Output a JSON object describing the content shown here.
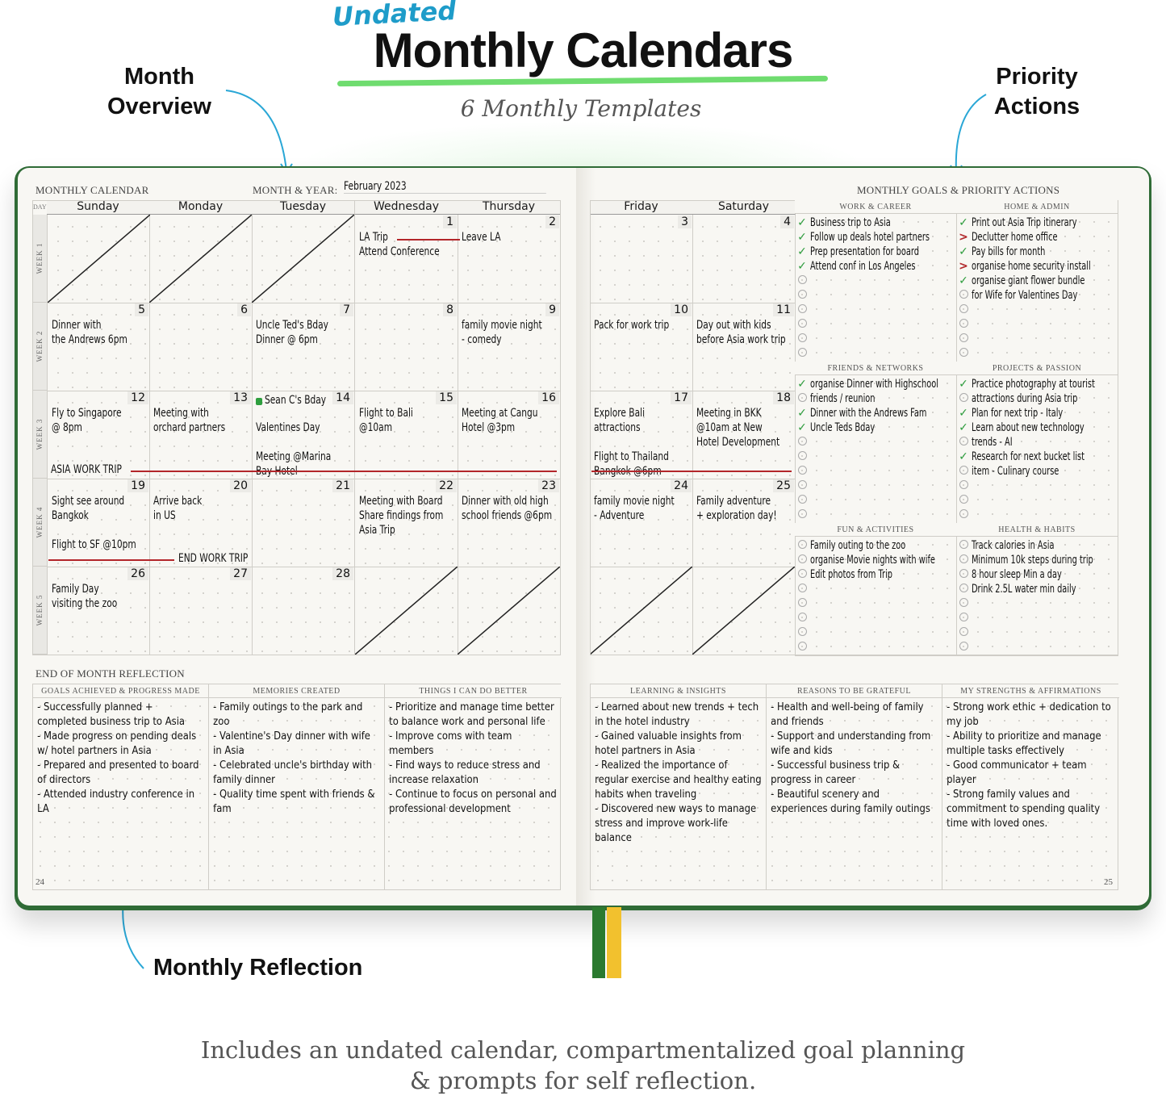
{
  "header": {
    "tag": "Undated",
    "title": "Monthly Calendars",
    "subtitle": "6 Monthly Templates"
  },
  "callouts": {
    "month_overview": "Month\nOverview",
    "priority_actions": "Priority\nActions",
    "monthly_reflection": "Monthly Reflection"
  },
  "footer": {
    "line1": "Includes an undated calendar, compartmentalized goal planning",
    "line2": "& prompts for self reflection."
  },
  "colors": {
    "cover": "#2f6b36",
    "accent_green": "#6fdc6f",
    "bar_red": "#b3262a",
    "check_green": "#2e9e3e",
    "undated_blue": "#1e9cc9",
    "ribbon_green": "#2b7a2f",
    "ribbon_yellow": "#f2c12e"
  },
  "left_page": {
    "section_label": "MONTHLY CALENDAR",
    "month_year_label": "MONTH & YEAR:",
    "month_year_value": "February 2023",
    "day_col_label": "DAY",
    "page_number": "24",
    "weeks": [
      "WEEK 1",
      "WEEK 2",
      "WEEK 3",
      "WEEK 4",
      "WEEK 5"
    ]
  },
  "right_page": {
    "section_label": "MONTHLY GOALS & PRIORITY ACTIONS",
    "page_number": "25"
  },
  "calendar": {
    "days": [
      "Sunday",
      "Monday",
      "Tuesday",
      "Wednesday",
      "Thursday",
      "Friday",
      "Saturday"
    ],
    "rows": [
      [
        {
          "crossed": true
        },
        {
          "crossed": true
        },
        {
          "crossed": true
        },
        {
          "day": "1",
          "lines": [
            "LA Trip",
            "Attend Conference"
          ]
        },
        {
          "day": "2",
          "lines": [
            "Leave LA"
          ]
        },
        {
          "day": "3",
          "lines": []
        },
        {
          "day": "4",
          "lines": []
        }
      ],
      [
        {
          "day": "5",
          "lines": [
            "Dinner with",
            "the Andrews 6pm"
          ]
        },
        {
          "day": "6",
          "lines": []
        },
        {
          "day": "7",
          "lines": [
            "Uncle Ted's Bday",
            "Dinner @ 6pm"
          ]
        },
        {
          "day": "8",
          "lines": []
        },
        {
          "day": "9",
          "lines": [
            "family movie night",
            "- comedy"
          ]
        },
        {
          "day": "10",
          "lines": [
            "Pack for work trip"
          ]
        },
        {
          "day": "11",
          "lines": [
            "Day out with kids",
            "before Asia work trip"
          ]
        }
      ],
      [
        {
          "day": "12",
          "lines": [
            "Fly to Singapore",
            "@ 8pm"
          ]
        },
        {
          "day": "13",
          "lines": [
            "Meeting with",
            "orchard partners"
          ]
        },
        {
          "day": "14",
          "lines": [
            "Sean C's Bday",
            "Valentines Day",
            "",
            "Meeting @Marina",
            "Bay Hotel"
          ]
        },
        {
          "day": "15",
          "lines": [
            "Flight to Bali",
            "@10am"
          ]
        },
        {
          "day": "16",
          "lines": [
            "Meeting at Cangu",
            "Hotel @3pm"
          ]
        },
        {
          "day": "17",
          "lines": [
            "Explore Bali",
            "attractions",
            "",
            "Flight to Thailand",
            "Bangkok @6pm"
          ]
        },
        {
          "day": "18",
          "lines": [
            "Meeting in BKK",
            "@10am at New",
            "Hotel Development"
          ]
        }
      ],
      [
        {
          "day": "19",
          "lines": [
            "Sight see around",
            "Bangkok",
            "",
            "Flight to SF @10pm"
          ]
        },
        {
          "day": "20",
          "lines": [
            "Arrive back",
            "in US"
          ]
        },
        {
          "day": "21",
          "lines": []
        },
        {
          "day": "22",
          "lines": [
            "Meeting with Board",
            "Share findings from",
            "Asia Trip"
          ]
        },
        {
          "day": "23",
          "lines": [
            "Dinner with old high",
            "school friends @6pm"
          ]
        },
        {
          "day": "24",
          "lines": [
            "family movie night",
            "- Adventure"
          ]
        },
        {
          "day": "25",
          "lines": [
            "Family adventure",
            "+ exploration day!"
          ]
        }
      ],
      [
        {
          "day": "26",
          "lines": [
            "Family Day",
            "visiting the zoo"
          ]
        },
        {
          "day": "27",
          "lines": []
        },
        {
          "day": "28",
          "lines": []
        },
        {
          "crossed": true
        },
        {
          "crossed": true
        },
        {
          "crossed": true
        },
        {
          "crossed": true
        }
      ]
    ],
    "span_labels": {
      "asia_trip": "ASIA WORK TRIP",
      "end_trip": "END WORK TRIP"
    }
  },
  "goals": [
    {
      "title": "WORK & CAREER",
      "rows": [
        [
          "check",
          "Business trip to Asia"
        ],
        [
          "check",
          "Follow up deals hotel partners"
        ],
        [
          "check",
          "Prep presentation for board"
        ],
        [
          "check",
          "Attend conf in Los Angeles"
        ],
        [
          "empty",
          ""
        ],
        [
          "empty",
          ""
        ],
        [
          "empty",
          ""
        ],
        [
          "empty",
          ""
        ],
        [
          "empty",
          ""
        ],
        [
          "empty",
          ""
        ]
      ]
    },
    {
      "title": "HOME & ADMIN",
      "rows": [
        [
          "check",
          "Print out Asia Trip itinerary"
        ],
        [
          "migrated",
          "Declutter home office"
        ],
        [
          "check",
          "Pay bills for month"
        ],
        [
          "migrated",
          "organise home security install"
        ],
        [
          "check",
          "organise giant flower bundle"
        ],
        [
          "empty",
          " for Wife for Valentines Day"
        ],
        [
          "empty",
          ""
        ],
        [
          "empty",
          ""
        ],
        [
          "empty",
          ""
        ],
        [
          "empty",
          ""
        ]
      ]
    },
    {
      "title": "FRIENDS & NETWORKS",
      "rows": [
        [
          "check",
          "organise Dinner with Highschool"
        ],
        [
          "empty",
          " friends / reunion"
        ],
        [
          "check",
          "Dinner with the Andrews Fam"
        ],
        [
          "check",
          "Uncle Teds Bday"
        ],
        [
          "empty",
          ""
        ],
        [
          "empty",
          ""
        ],
        [
          "empty",
          ""
        ],
        [
          "empty",
          ""
        ],
        [
          "empty",
          ""
        ],
        [
          "empty",
          ""
        ]
      ]
    },
    {
      "title": "PROJECTS & PASSION",
      "rows": [
        [
          "check",
          "Practice photography at tourist"
        ],
        [
          "empty",
          " attractions during Asia trip"
        ],
        [
          "check",
          "Plan for next trip - Italy"
        ],
        [
          "check",
          "Learn about new technology"
        ],
        [
          "empty",
          " trends - AI"
        ],
        [
          "check",
          "Research for next bucket list"
        ],
        [
          "empty",
          " item - Culinary course"
        ],
        [
          "empty",
          ""
        ],
        [
          "empty",
          ""
        ],
        [
          "empty",
          ""
        ]
      ]
    },
    {
      "title": "FUN & ACTIVITIES",
      "rows": [
        [
          "empty",
          "Family outing to the zoo"
        ],
        [
          "empty",
          "organise Movie nights with wife"
        ],
        [
          "empty",
          "Edit photos from Trip"
        ],
        [
          "empty",
          ""
        ],
        [
          "empty",
          ""
        ],
        [
          "empty",
          ""
        ],
        [
          "empty",
          ""
        ],
        [
          "empty",
          ""
        ]
      ]
    },
    {
      "title": "HEALTH & HABITS",
      "rows": [
        [
          "empty",
          "Track calories in Asia"
        ],
        [
          "empty",
          "Minimum 10k steps during trip"
        ],
        [
          "empty",
          "8 hour sleep Min a day"
        ],
        [
          "empty",
          "Drink 2.5L water min daily"
        ],
        [
          "empty",
          ""
        ],
        [
          "empty",
          ""
        ],
        [
          "empty",
          ""
        ],
        [
          "empty",
          ""
        ]
      ]
    }
  ],
  "reflection": {
    "section_label": "END OF MONTH REFLECTION",
    "boxes": [
      {
        "title": "GOALS ACHIEVED & PROGRESS MADE",
        "items": [
          "- Successfully planned + completed business trip to Asia",
          "- Made progress on pending deals w/ hotel partners in Asia",
          "- Prepared and presented to board of directors",
          "- Attended industry conference in LA"
        ]
      },
      {
        "title": "MEMORIES CREATED",
        "items": [
          "- Family outings to the park and zoo",
          "- Valentine's Day dinner with wife in Asia",
          "- Celebrated uncle's birthday with family dinner",
          "- Quality time spent with friends & fam"
        ]
      },
      {
        "title": "THINGS I CAN DO BETTER",
        "items": [
          "- Prioritize and manage time better to balance work and personal life",
          "- Improve coms with team members",
          "- Find ways to reduce stress and increase relaxation",
          "- Continue to focus on personal and professional development"
        ]
      },
      {
        "title": "LEARNING & INSIGHTS",
        "items": [
          "- Learned about new trends + tech in the hotel industry",
          "- Gained valuable insights from hotel partners in Asia",
          "- Realized the importance of regular exercise and healthy eating habits when traveling",
          "- Discovered new ways to manage stress and improve work-life balance"
        ]
      },
      {
        "title": "REASONS TO BE GRATEFUL",
        "items": [
          "- Health and well-being of family and friends",
          "- Support and understanding from wife and kids",
          "- Successful business trip & progress in career",
          "- Beautiful scenery and experiences during family outings"
        ]
      },
      {
        "title": "MY STRENGTHS & AFFIRMATIONS",
        "items": [
          "- Strong work ethic + dedication to my job",
          "- Ability to prioritize and manage multiple tasks effectively",
          "- Good communicator + team player",
          "- Strong family values and commitment to spending quality time with loved ones."
        ]
      }
    ]
  }
}
